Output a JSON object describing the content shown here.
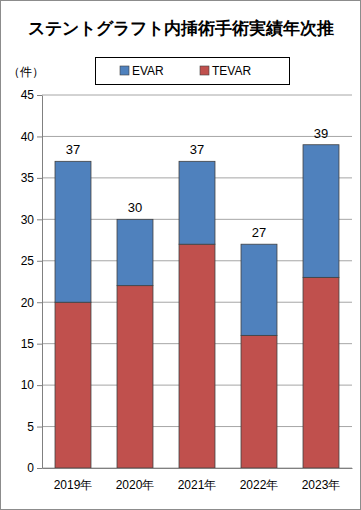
{
  "chart_data": {
    "type": "bar",
    "title": "ステントグラフト内挿術手術実績年次推",
    "y_label": "（件）",
    "categories": [
      "2019年",
      "2020年",
      "2021年",
      "2022年",
      "2023年"
    ],
    "series": [
      {
        "name": "TEVAR",
        "color": "#c0504d",
        "values": [
          20,
          22,
          27,
          16,
          23
        ]
      },
      {
        "name": "EVAR",
        "color": "#4f81bd",
        "values": [
          17,
          8,
          10,
          11,
          16
        ]
      }
    ],
    "totals": [
      37,
      30,
      37,
      27,
      39
    ],
    "stacked": true,
    "ylim": [
      0,
      45
    ],
    "yticks": [
      0,
      5,
      10,
      15,
      20,
      25,
      30,
      35,
      40,
      45
    ],
    "grid": true,
    "legend": "top"
  }
}
